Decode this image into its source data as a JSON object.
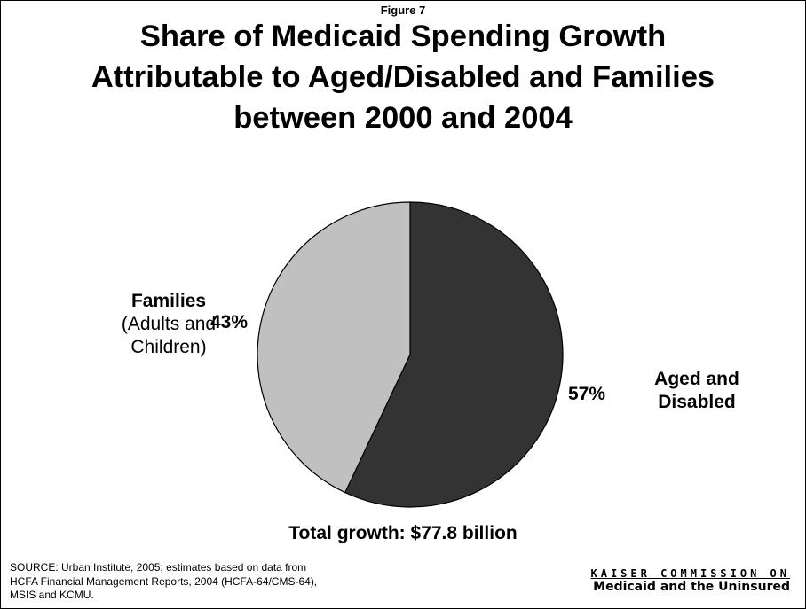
{
  "figure_label": "Figure 7",
  "title_lines": [
    "Share of Medicaid Spending Growth",
    "Attributable to Aged/Disabled and Families",
    "between 2000 and 2004"
  ],
  "chart_data": {
    "type": "pie",
    "title": "Share of Medicaid Spending Growth Attributable to Aged/Disabled and Families between 2000 and 2004",
    "slices": [
      {
        "name": "Aged and Disabled",
        "value": 57,
        "label": "57%",
        "color": "#333333"
      },
      {
        "name": "Families (Adults and Children)",
        "value": 43,
        "label": "43%",
        "color": "#c0c0c0"
      }
    ],
    "total_label": "Total growth: $77.8 billion"
  },
  "labels": {
    "families_main": "Families",
    "families_sub1": "(Adults and",
    "families_sub2": "Children)",
    "aged_line1": "Aged and",
    "aged_line2": "Disabled"
  },
  "source_lines": [
    "SOURCE: Urban Institute, 2005; estimates based on data from",
    "HCFA Financial Management Reports, 2004 (HCFA-64/CMS-64),",
    "MSIS and KCMU."
  ],
  "logo": {
    "top": "KAISER COMMISSION ON",
    "bottom": "Medicaid and the Uninsured"
  }
}
